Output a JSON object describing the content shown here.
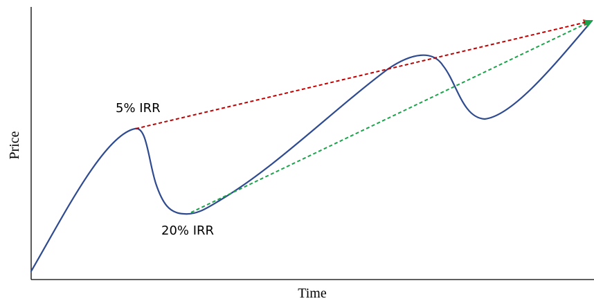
{
  "axes": {
    "x_label": "Time",
    "y_label": "Price"
  },
  "annotations": {
    "five_pct": "5% IRR",
    "twenty_pct": "20% IRR"
  },
  "colors": {
    "curve": "#2f4b8f",
    "five_pct_line": "#c00000",
    "twenty_pct_line": "#1aa34a",
    "axis": "#000000"
  }
}
